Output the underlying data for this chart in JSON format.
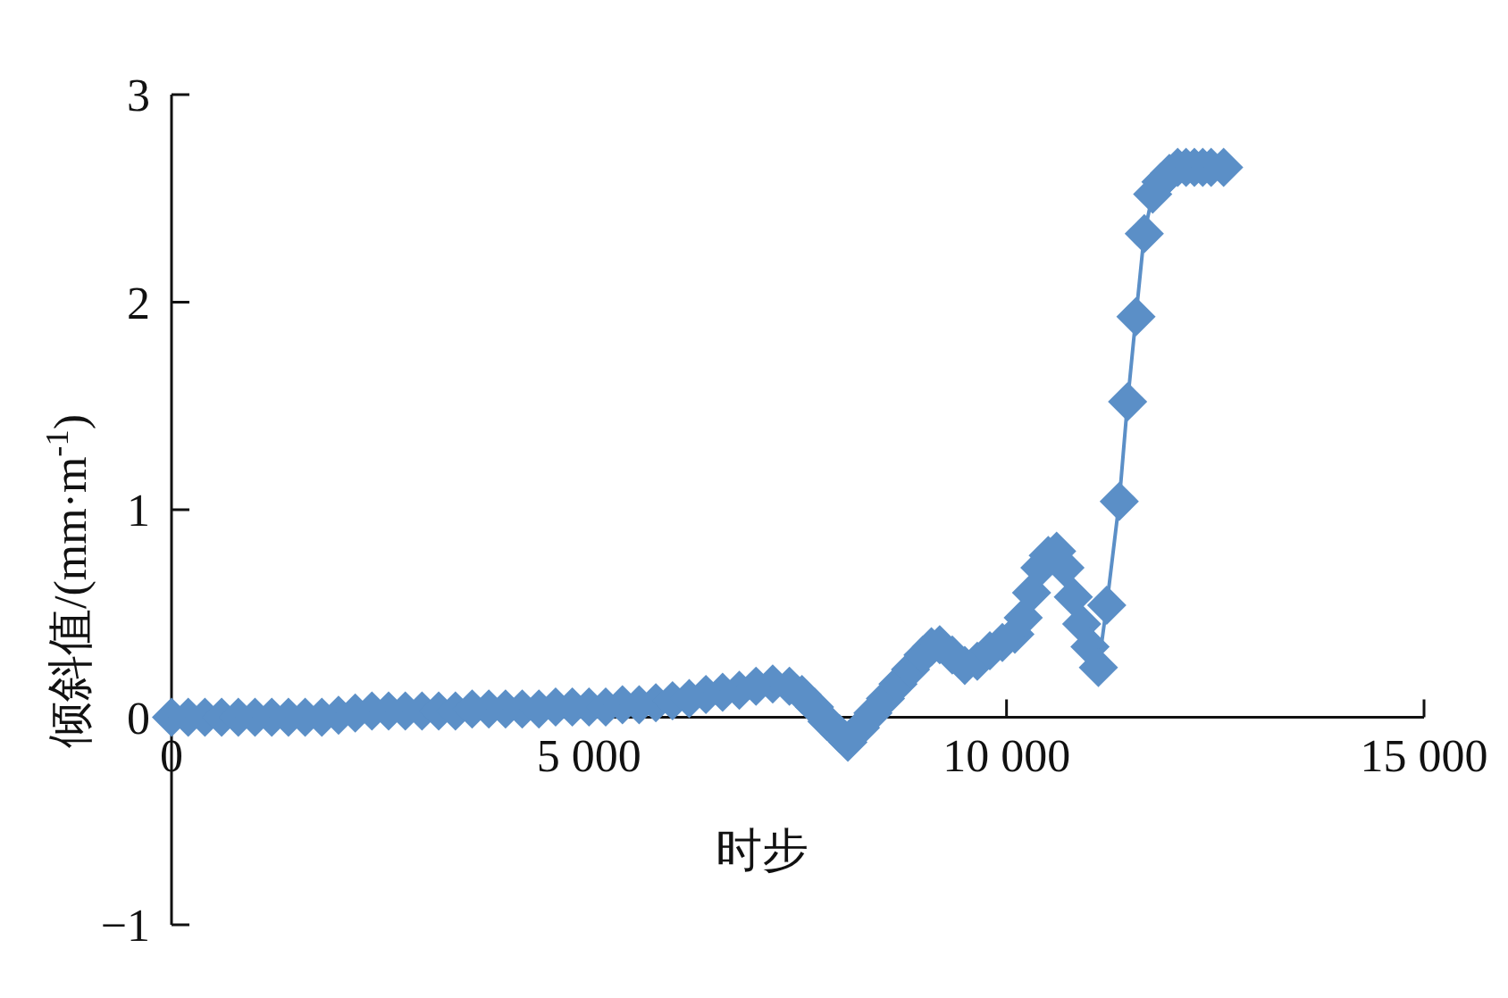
{
  "chart_data": {
    "type": "line",
    "xlabel": "时步",
    "ylabel": "倾斜值/(mm·m$^{-1}$)",
    "marker": "diamond",
    "line_style": "solid",
    "xlim": [
      0,
      15000
    ],
    "ylim": [
      -1,
      3
    ],
    "xticks": [
      0,
      {
        "value": 5000,
        "label": "5 000"
      },
      {
        "value": 10000,
        "label": "10 000"
      },
      {
        "value": 15000,
        "label": "15 000"
      }
    ],
    "yticks": [
      {
        "value": -1,
        "label": "−1"
      },
      0,
      1,
      2,
      3
    ],
    "series": [
      {
        "color": "#5b8fc7",
        "x": [
          0,
          200,
          400,
          600,
          800,
          1000,
          1200,
          1400,
          1600,
          1800,
          2000,
          2200,
          2400,
          2600,
          2800,
          3000,
          3200,
          3400,
          3600,
          3800,
          4000,
          4200,
          4400,
          4600,
          4800,
          5000,
          5200,
          5400,
          5600,
          5800,
          6000,
          6200,
          6400,
          6600,
          6800,
          7000,
          7200,
          7400,
          7550,
          7700,
          7850,
          8000,
          8100,
          8250,
          8400,
          8550,
          8700,
          8850,
          9000,
          9100,
          9200,
          9350,
          9500,
          9650,
          9800,
          9950,
          10100,
          10200,
          10300,
          10400,
          10500,
          10600,
          10700,
          10800,
          10900,
          11000,
          11100,
          11200,
          11350,
          11450,
          11550,
          11650,
          11750,
          11850,
          11950,
          12050,
          12150,
          12250,
          12350,
          12450,
          12600
        ],
        "values": [
          0,
          0,
          0,
          0,
          0,
          0,
          0,
          0,
          0,
          0,
          0.01,
          0.02,
          0.03,
          0.03,
          0.03,
          0.03,
          0.03,
          0.03,
          0.04,
          0.04,
          0.04,
          0.04,
          0.04,
          0.05,
          0.05,
          0.05,
          0.05,
          0.06,
          0.06,
          0.07,
          0.08,
          0.09,
          0.11,
          0.12,
          0.13,
          0.15,
          0.16,
          0.15,
          0.11,
          0.05,
          -0.02,
          -0.08,
          -0.12,
          -0.05,
          0.02,
          0.09,
          0.16,
          0.23,
          0.3,
          0.34,
          0.35,
          0.3,
          0.25,
          0.27,
          0.32,
          0.36,
          0.4,
          0.48,
          0.6,
          0.72,
          0.78,
          0.8,
          0.72,
          0.58,
          0.45,
          0.34,
          0.24,
          0.54,
          1.04,
          1.52,
          1.93,
          2.33,
          2.52,
          2.58,
          2.62,
          2.65,
          2.65,
          2.65,
          2.65,
          2.65,
          2.65
        ]
      }
    ]
  }
}
